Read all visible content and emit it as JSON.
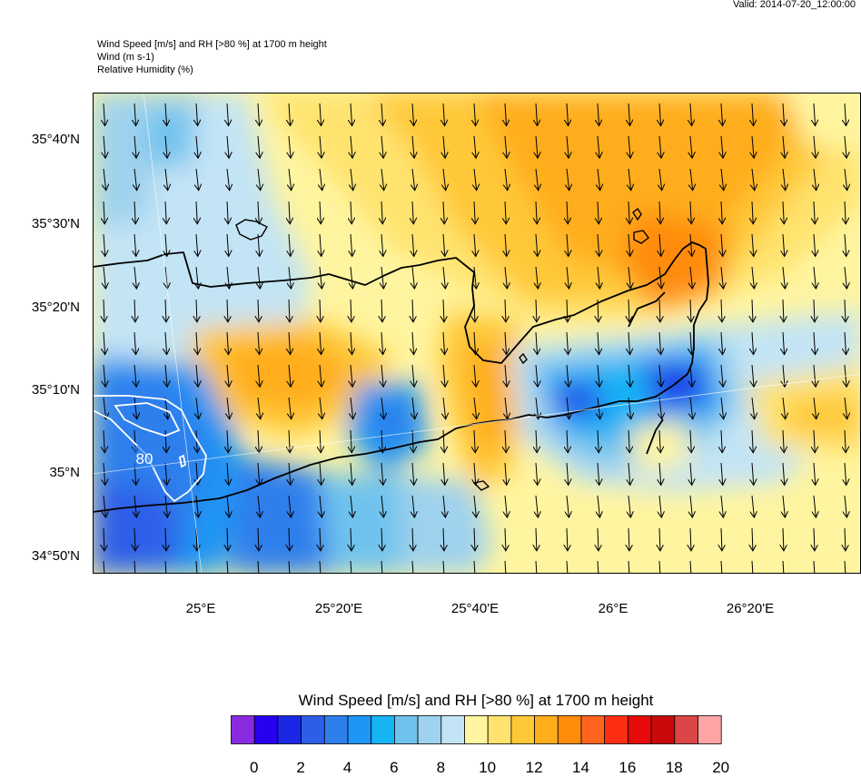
{
  "header": {
    "valid": "Valid: 2014-07-20_12:00:00",
    "line1": "Wind Speed [m/s] and RH [>80 %] at 1700 m height",
    "line2": "Wind   (m s-1)",
    "line3": "Relative Humidity   (%)"
  },
  "map": {
    "lat_labels": [
      "35°40'N",
      "35°30'N",
      "35°20'N",
      "35°10'N",
      "35°N",
      "34°50'N"
    ],
    "lon_labels": [
      "25°E",
      "25°20'E",
      "25°40'E",
      "26°E",
      "26°20'E"
    ],
    "contour_label": "80"
  },
  "colorbar": {
    "title": "Wind Speed [m/s] and RH [>80 %] at 1700 m height",
    "labels": [
      "0",
      "2",
      "4",
      "6",
      "8",
      "10",
      "12",
      "14",
      "16",
      "18",
      "20"
    ],
    "colors": [
      "#8a2be2",
      "#2800f0",
      "#1a28e6",
      "#2d5ee8",
      "#2e7fec",
      "#1e96f5",
      "#14b4f5",
      "#6fc2ee",
      "#9fd2ee",
      "#c3e4f5",
      "#fff5a0",
      "#ffe36e",
      "#ffc837",
      "#ffad1a",
      "#ff8c0a",
      "#ff641e",
      "#ff2d14",
      "#e60a0a",
      "#c80a0a",
      "#dc4646",
      "#ffa5a5"
    ]
  }
}
